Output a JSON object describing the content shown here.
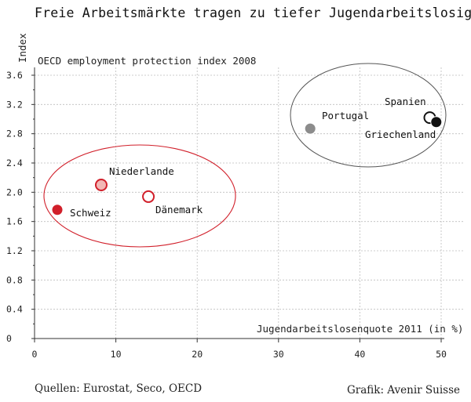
{
  "chart_data": {
    "type": "scatter",
    "title": "Freie Arbeitsmärkte tragen zu tiefer Jugendarbeitslosigkeit bei",
    "y_unit": "Index",
    "ylabel": "OECD employment protection index 2008",
    "xlabel": "Jugendarbeitslosenquote 2011 (in %)",
    "xlim": [
      0,
      50
    ],
    "ylim": [
      0,
      3.6
    ],
    "x_ticks": [
      "0",
      "10",
      "20",
      "30",
      "40",
      "50"
    ],
    "y_ticks": [
      "0",
      "0.4",
      "0.8",
      "1.2",
      "1.6",
      "2.0",
      "2.4",
      "2.8",
      "3.2",
      "3.6"
    ],
    "grid": true,
    "points": [
      {
        "label": "Schweiz",
        "x": 2.8,
        "y": 1.76,
        "style": "red-filled"
      },
      {
        "label": "Niederlande",
        "x": 8.2,
        "y": 2.1,
        "style": "red-light"
      },
      {
        "label": "Dänemark",
        "x": 14.0,
        "y": 1.94,
        "style": "red-open"
      },
      {
        "label": "Portugal",
        "x": 33.9,
        "y": 2.87,
        "style": "gray-filled"
      },
      {
        "label": "Spanien",
        "x": 48.6,
        "y": 3.02,
        "style": "black-open"
      },
      {
        "label": "Griechenland",
        "x": 49.4,
        "y": 2.96,
        "style": "black-filled"
      }
    ],
    "colors": {
      "red": "#d11f2a",
      "red_light": "#f2b7b5",
      "gray": "#8c8c8c",
      "black": "#111111",
      "grid": "#bdbdbd"
    }
  },
  "footer": {
    "source": "Quellen: Eurostat, Seco, OECD",
    "credit": "Grafik: Avenir Suisse"
  }
}
